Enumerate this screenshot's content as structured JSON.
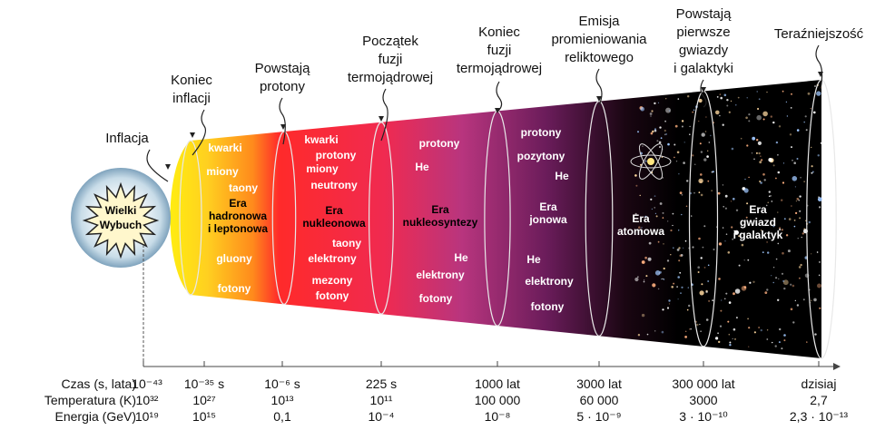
{
  "big_bang": [
    "Wielki",
    "Wybuch"
  ],
  "milestones": [
    {
      "lines": [
        "Inflacja"
      ]
    },
    {
      "lines": [
        "Koniec",
        "inflacji"
      ]
    },
    {
      "lines": [
        "Powstają",
        "protony"
      ]
    },
    {
      "lines": [
        "Początek",
        "fuzji",
        "termojądrowej"
      ]
    },
    {
      "lines": [
        "Koniec",
        "fuzji",
        "termojądrowej"
      ]
    },
    {
      "lines": [
        "Emisja",
        "promieniowania",
        "reliktowego"
      ]
    },
    {
      "lines": [
        "Powstają",
        "pierwsze",
        "gwiazdy",
        "i galaktyki"
      ]
    },
    {
      "lines": [
        "Teraźniejszość"
      ]
    }
  ],
  "eras": [
    {
      "name": [
        "Era",
        "hadronowa",
        "i leptonowa"
      ],
      "particles": [
        "kwarki",
        "miony",
        "taony",
        "gluony",
        "fotony"
      ]
    },
    {
      "name": [
        "Era",
        "nukleonowa"
      ],
      "particles": [
        "kwarki",
        "protony",
        "miony",
        "neutrony",
        "taony",
        "elektrony",
        "mezony",
        "fotony"
      ]
    },
    {
      "name": [
        "Era",
        "nukleosyntezy"
      ],
      "particles": [
        "protony",
        "He",
        "He",
        "elektrony",
        "fotony"
      ]
    },
    {
      "name": [
        "Era",
        "jonowa"
      ],
      "particles": [
        "protony",
        "pozytony",
        "He",
        "He",
        "elektrony",
        "fotony"
      ]
    },
    {
      "name": [
        "Era",
        "atomowa"
      ],
      "particles": []
    },
    {
      "name": [
        "Era",
        "gwiazd",
        "i galaktyk"
      ],
      "particles": []
    }
  ],
  "axis": {
    "row_labels": [
      "Czas (s, lata)",
      "Temperatura (K)",
      "Energia (GeV)"
    ],
    "columns": [
      {
        "time": "10⁻⁴³",
        "temp": "10³²",
        "energy": "10¹⁹"
      },
      {
        "time": "10⁻³⁵ s",
        "temp": "10²⁷",
        "energy": "10¹⁵"
      },
      {
        "time": "10⁻⁶ s",
        "temp": "10¹³",
        "energy": "0,1"
      },
      {
        "time": "225 s",
        "temp": "10¹¹",
        "energy": "10⁻⁴"
      },
      {
        "time": "1000 lat",
        "temp": "100 000",
        "energy": "10⁻⁸"
      },
      {
        "time": "3000 lat",
        "temp": "60 000",
        "energy": "5 · 10⁻⁹"
      },
      {
        "time": "300 000 lat",
        "temp": "3000",
        "energy": "3 · 10⁻¹⁰"
      },
      {
        "time": "dzisiaj",
        "temp": "2,7",
        "energy": "2,3 · 10⁻¹³"
      }
    ]
  }
}
